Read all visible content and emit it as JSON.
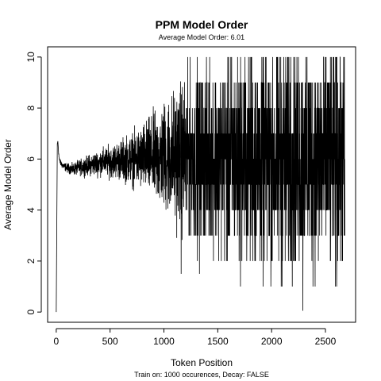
{
  "chart_data": {
    "type": "line",
    "title": "PPM Model Order",
    "subtitle": "Average Model Order: 6.01",
    "xlabel": "Token Position",
    "ylabel": "Average Model Order",
    "caption": "Train on: 1000 occurences, Decay: FALSE",
    "xlim": [
      -80,
      2780
    ],
    "ylim": [
      -0.4,
      10.4
    ],
    "x_ticks": [
      0,
      500,
      1000,
      1500,
      2000,
      2500
    ],
    "x_tick_labels": [
      "0",
      "500",
      "1000",
      "1500",
      "2000",
      "2500"
    ],
    "y_ticks": [
      0,
      2,
      4,
      6,
      8,
      10
    ],
    "y_tick_labels": [
      "0",
      "2",
      "4",
      "6",
      "8",
      "10"
    ],
    "grid": false,
    "line_color": "#000000",
    "n_points": 2680,
    "series": [
      {
        "x": [
          0,
          10,
          15,
          20,
          25,
          30,
          40,
          50,
          60,
          80,
          100,
          150,
          200,
          250,
          300,
          350,
          400,
          450,
          500,
          550,
          600,
          650,
          700,
          750,
          800,
          850,
          900,
          950,
          1000,
          1050,
          1100,
          1150,
          1200,
          1250,
          1300,
          1350,
          1400,
          1450,
          1500,
          1550,
          1600,
          1650,
          1700,
          1750,
          1800,
          1850,
          1900,
          1950,
          2000,
          2050,
          2100,
          2150,
          2200,
          2250,
          2300,
          2350,
          2400,
          2450,
          2500,
          2550,
          2600,
          2650,
          2680
        ],
        "mean": [
          0,
          6.6,
          6.7,
          6.4,
          6.1,
          5.95,
          5.85,
          5.8,
          5.75,
          5.7,
          5.65,
          5.6,
          5.65,
          5.7,
          5.75,
          5.8,
          5.85,
          5.9,
          5.9,
          5.95,
          5.95,
          6.0,
          6.0,
          6.0,
          6.05,
          6.05,
          6.05,
          6.05,
          6.1,
          6.1,
          6.1,
          6.1,
          6.1,
          6.1,
          6.1,
          6.1,
          6.1,
          6.05,
          6.05,
          6.05,
          6.05,
          6.0,
          6.0,
          6.0,
          6.0,
          6.0,
          6.0,
          6.0,
          6.0,
          6.0,
          6.0,
          6.0,
          6.0,
          6.0,
          6.0,
          6.0,
          6.0,
          6.0,
          6.0,
          6.0,
          6.0,
          6.0,
          6.0
        ],
        "spread": [
          0,
          0,
          0,
          0.1,
          0.1,
          0.1,
          0.1,
          0.12,
          0.13,
          0.14,
          0.16,
          0.2,
          0.25,
          0.3,
          0.35,
          0.4,
          0.45,
          0.5,
          0.55,
          0.6,
          0.7,
          0.8,
          0.9,
          1.0,
          1.15,
          1.3,
          1.5,
          1.7,
          1.9,
          2.1,
          2.3,
          2.5,
          2.7,
          2.8,
          2.9,
          3.0,
          3.1,
          3.2,
          3.3,
          3.4,
          3.5,
          3.6,
          3.65,
          3.7,
          3.75,
          3.8,
          3.85,
          3.9,
          3.9,
          3.95,
          4.0,
          4.0,
          4.0,
          4.0,
          4.0,
          4.0,
          4.0,
          4.0,
          4.0,
          4.0,
          4.0,
          4.0,
          4.0
        ]
      }
    ],
    "outliers": [
      {
        "x": 2290,
        "y": 0.05
      },
      {
        "x": 1160,
        "y": 1.5
      },
      {
        "x": 1330,
        "y": 1.5
      }
    ]
  }
}
